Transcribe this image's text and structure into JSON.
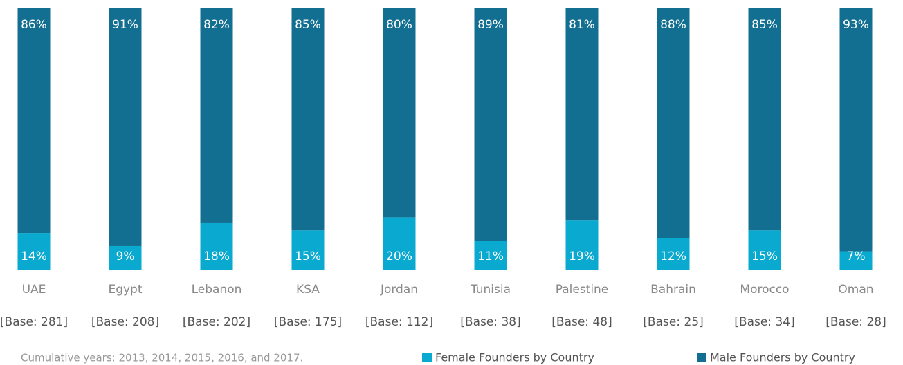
{
  "chart_data": {
    "type": "stacked_bar",
    "categories": [
      "UAE",
      "Egypt",
      "Lebanon",
      "KSA",
      "Jordan",
      "Tunisia",
      "Palestine",
      "Bahrain",
      "Morocco",
      "Oman"
    ],
    "base_labels": [
      "[Base: 281]",
      "[Base: 208]",
      "[Base: 202]",
      "[Base: 175]",
      "[Base: 112]",
      "[Base: 38]",
      "[Base: 48]",
      "[Base: 25]",
      "[Base: 34]",
      "[Base: 28]"
    ],
    "series": [
      {
        "name": "Female Founders by Country",
        "color": "#0aa9cf",
        "values": [
          14,
          9,
          18,
          15,
          20,
          11,
          19,
          12,
          15,
          7
        ],
        "value_labels": [
          "14%",
          "9%",
          "18%",
          "15%",
          "20%",
          "11%",
          "19%",
          "12%",
          "15%",
          "7%"
        ]
      },
      {
        "name": "Male Founders by Country",
        "color": "#136f91",
        "values": [
          86,
          91,
          82,
          85,
          80,
          89,
          81,
          88,
          85,
          93
        ],
        "value_labels": [
          "86%",
          "91%",
          "82%",
          "85%",
          "80%",
          "89%",
          "81%",
          "88%",
          "85%",
          "93%"
        ]
      }
    ],
    "ylim": [
      0,
      100
    ],
    "footnote": "Cumulative years: 2013, 2014, 2015, 2016, and 2017."
  }
}
